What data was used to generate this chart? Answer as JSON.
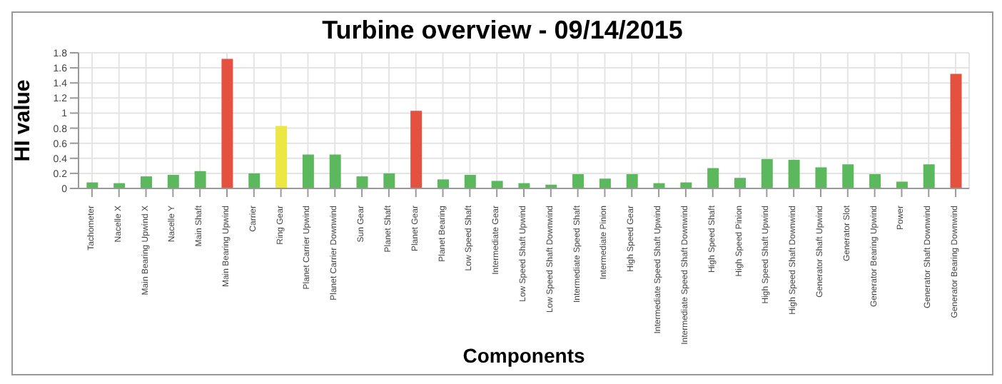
{
  "chart_data": {
    "type": "bar",
    "title": "Turbine overview - 09/14/2015",
    "xlabel": "Components",
    "ylabel": "HI value",
    "categories": [
      "Tachometer",
      "Nacelle X",
      "Main Bearing Upwind X",
      "Nacelle Y",
      "Main Shaft",
      "Main Bearing Upwind",
      "Carrier",
      "Ring Gear",
      "Planet Carrier Upwind",
      "Planet Carrier Downwind",
      "Sun Gear",
      "Planet Shaft",
      "Planet Gear",
      "Planet Bearing",
      "Low Speed Shaft",
      "Intermediate Gear",
      "Low Speed Shaft Upwind",
      "Low Speed Shaft Downwind",
      "Intermediate Speed Shaft",
      "Intermediate Pinion",
      "High Speed Gear",
      "Intermediate Speed Shaft Upwind",
      "Intermediate Speed Shaft Downwind",
      "High Speed Shaft",
      "High Speed Pinion",
      "High Speed Shaft Upwind",
      "High Speed Shaft Downwind",
      "Generator Shaft Upwind",
      "Generator Slot",
      "Generator Bearing Upwind",
      "Power",
      "Generator Shaft Downwind",
      "Generator Bearing Downwind"
    ],
    "values": [
      0.08,
      0.07,
      0.16,
      0.18,
      0.23,
      1.72,
      0.2,
      0.83,
      0.45,
      0.45,
      0.16,
      0.2,
      1.03,
      0.12,
      0.18,
      0.1,
      0.07,
      0.05,
      0.19,
      0.13,
      0.19,
      0.07,
      0.08,
      0.27,
      0.14,
      0.39,
      0.38,
      0.28,
      0.32,
      0.19,
      0.09,
      0.32,
      1.52
    ],
    "colors": [
      "#5cb85c",
      "#5cb85c",
      "#5cb85c",
      "#5cb85c",
      "#5cb85c",
      "#e4513e",
      "#5cb85c",
      "#ede744",
      "#5cb85c",
      "#5cb85c",
      "#5cb85c",
      "#5cb85c",
      "#e4513e",
      "#5cb85c",
      "#5cb85c",
      "#5cb85c",
      "#5cb85c",
      "#5cb85c",
      "#5cb85c",
      "#5cb85c",
      "#5cb85c",
      "#5cb85c",
      "#5cb85c",
      "#5cb85c",
      "#5cb85c",
      "#5cb85c",
      "#5cb85c",
      "#5cb85c",
      "#5cb85c",
      "#5cb85c",
      "#5cb85c",
      "#5cb85c",
      "#e4513e"
    ],
    "ylim": [
      0,
      1.8
    ],
    "yticks": [
      0,
      0.2,
      0.4,
      0.6,
      0.8,
      1,
      1.2,
      1.4,
      1.6,
      1.8
    ],
    "grid": true
  }
}
